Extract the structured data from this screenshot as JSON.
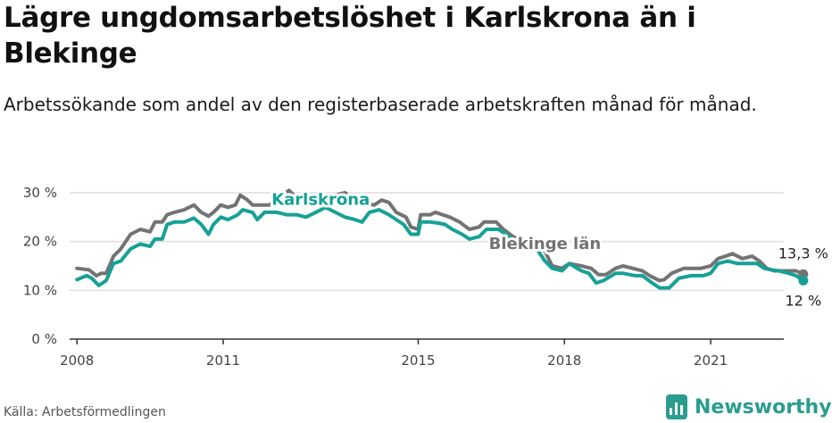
{
  "title": "Lägre ungdomsarbetslöshet i Karlskrona än i Blekinge",
  "subtitle": "Arbetssökande som andel av den registerbaserade arbetskraften månad för månad.",
  "source": "Källa: Arbetsförmedlingen",
  "brand": "Newsworthy",
  "colors": {
    "karlskrona": "#16a196",
    "blekinge": "#737373",
    "grid": "#dddddd",
    "brand": "#2a9d8f"
  },
  "chart_data": {
    "type": "line",
    "title": "Lägre ungdomsarbetslöshet i Karlskrona än i Blekinge",
    "xlabel": "",
    "ylabel": "",
    "xlim": [
      2007.85,
      2022.5
    ],
    "ylim": [
      0,
      30
    ],
    "y_ticks": [
      0,
      10,
      20,
      30
    ],
    "y_tick_labels": [
      "0 %",
      "10 %",
      "20 %",
      "30 %"
    ],
    "x_ticks": [
      2008,
      2011,
      2015,
      2018,
      2021
    ],
    "x_tick_labels": [
      "2008",
      "2011",
      "2015",
      "2018",
      "2021"
    ],
    "grid": true,
    "series": [
      {
        "name": "Blekinge län",
        "color": "#737373",
        "end_label": "13,3 %",
        "points": [
          [
            2008.0,
            14.5
          ],
          [
            2008.25,
            14.2
          ],
          [
            2008.4,
            13.0
          ],
          [
            2008.5,
            13.5
          ],
          [
            2008.6,
            13.5
          ],
          [
            2008.75,
            17.0
          ],
          [
            2008.9,
            18.5
          ],
          [
            2009.1,
            21.5
          ],
          [
            2009.3,
            22.5
          ],
          [
            2009.5,
            22.0
          ],
          [
            2009.6,
            24.0
          ],
          [
            2009.75,
            24.0
          ],
          [
            2009.85,
            25.5
          ],
          [
            2010.0,
            26.0
          ],
          [
            2010.2,
            26.5
          ],
          [
            2010.4,
            27.5
          ],
          [
            2010.55,
            26.0
          ],
          [
            2010.7,
            25.2
          ],
          [
            2010.8,
            26.0
          ],
          [
            2010.95,
            27.5
          ],
          [
            2011.1,
            27.0
          ],
          [
            2011.25,
            27.5
          ],
          [
            2011.35,
            29.5
          ],
          [
            2011.5,
            28.5
          ],
          [
            2011.6,
            27.5
          ],
          [
            2011.8,
            27.5
          ],
          [
            2011.95,
            27.5
          ],
          [
            2012.15,
            29.0
          ],
          [
            2012.35,
            30.5
          ],
          [
            2012.5,
            29.0
          ],
          [
            2012.7,
            28.5
          ],
          [
            2012.9,
            29.5
          ],
          [
            2013.1,
            29.2
          ],
          [
            2013.3,
            29.5
          ],
          [
            2013.5,
            30.0
          ],
          [
            2013.7,
            28.5
          ],
          [
            2013.9,
            27.8
          ],
          [
            2014.1,
            27.5
          ],
          [
            2014.25,
            28.5
          ],
          [
            2014.4,
            28.0
          ],
          [
            2014.55,
            26.0
          ],
          [
            2014.75,
            25.0
          ],
          [
            2014.85,
            23.0
          ],
          [
            2015.0,
            22.5
          ],
          [
            2015.05,
            25.5
          ],
          [
            2015.25,
            25.5
          ],
          [
            2015.35,
            26.0
          ],
          [
            2015.5,
            25.5
          ],
          [
            2015.65,
            25.0
          ],
          [
            2015.85,
            24.0
          ],
          [
            2016.05,
            22.5
          ],
          [
            2016.25,
            23.0
          ],
          [
            2016.35,
            24.0
          ],
          [
            2016.6,
            24.0
          ],
          [
            2016.75,
            22.5
          ],
          [
            2016.95,
            21.0
          ],
          [
            2017.15,
            20.0
          ],
          [
            2017.4,
            20.0
          ],
          [
            2017.6,
            18.0
          ],
          [
            2017.75,
            15.0
          ],
          [
            2017.95,
            14.5
          ],
          [
            2018.1,
            15.5
          ],
          [
            2018.35,
            15.0
          ],
          [
            2018.55,
            14.5
          ],
          [
            2018.7,
            13.2
          ],
          [
            2018.85,
            13.2
          ],
          [
            2019.05,
            14.5
          ],
          [
            2019.2,
            15.0
          ],
          [
            2019.4,
            14.5
          ],
          [
            2019.6,
            14.0
          ],
          [
            2019.75,
            13.0
          ],
          [
            2019.95,
            12.0
          ],
          [
            2020.05,
            12.2
          ],
          [
            2020.2,
            13.5
          ],
          [
            2020.45,
            14.5
          ],
          [
            2020.6,
            14.5
          ],
          [
            2020.8,
            14.5
          ],
          [
            2021.0,
            15.0
          ],
          [
            2021.15,
            16.5
          ],
          [
            2021.3,
            17.0
          ],
          [
            2021.45,
            17.5
          ],
          [
            2021.65,
            16.5
          ],
          [
            2021.85,
            17.0
          ],
          [
            2022.0,
            16.0
          ],
          [
            2022.15,
            14.5
          ],
          [
            2022.3,
            14.0
          ],
          [
            2022.55,
            14.0
          ],
          [
            2022.75,
            14.0
          ],
          [
            2022.9,
            13.3
          ]
        ]
      },
      {
        "name": "Karlskrona",
        "color": "#16a196",
        "end_label": "12 %",
        "points": [
          [
            2008.0,
            12.2
          ],
          [
            2008.2,
            13.0
          ],
          [
            2008.3,
            12.5
          ],
          [
            2008.45,
            11.0
          ],
          [
            2008.6,
            12.0
          ],
          [
            2008.75,
            15.5
          ],
          [
            2008.9,
            16.0
          ],
          [
            2009.1,
            18.5
          ],
          [
            2009.3,
            19.5
          ],
          [
            2009.5,
            19.0
          ],
          [
            2009.6,
            20.5
          ],
          [
            2009.75,
            20.5
          ],
          [
            2009.85,
            23.5
          ],
          [
            2010.0,
            24.0
          ],
          [
            2010.2,
            24.0
          ],
          [
            2010.4,
            24.8
          ],
          [
            2010.55,
            23.5
          ],
          [
            2010.7,
            21.5
          ],
          [
            2010.8,
            23.5
          ],
          [
            2010.95,
            25.0
          ],
          [
            2011.1,
            24.5
          ],
          [
            2011.3,
            25.5
          ],
          [
            2011.4,
            26.5
          ],
          [
            2011.6,
            26.0
          ],
          [
            2011.7,
            24.5
          ],
          [
            2011.85,
            26.0
          ],
          [
            2012.1,
            26.0
          ],
          [
            2012.3,
            25.5
          ],
          [
            2012.5,
            25.5
          ],
          [
            2012.7,
            25.0
          ],
          [
            2012.9,
            26.0
          ],
          [
            2013.1,
            27.0
          ],
          [
            2013.3,
            26.0
          ],
          [
            2013.5,
            25.0
          ],
          [
            2013.7,
            24.5
          ],
          [
            2013.85,
            24.0
          ],
          [
            2014.0,
            26.0
          ],
          [
            2014.2,
            26.5
          ],
          [
            2014.4,
            25.5
          ],
          [
            2014.55,
            24.5
          ],
          [
            2014.7,
            23.5
          ],
          [
            2014.85,
            21.5
          ],
          [
            2015.0,
            21.5
          ],
          [
            2015.05,
            24.0
          ],
          [
            2015.25,
            24.0
          ],
          [
            2015.4,
            23.8
          ],
          [
            2015.55,
            23.5
          ],
          [
            2015.7,
            22.5
          ],
          [
            2015.9,
            21.5
          ],
          [
            2016.05,
            20.5
          ],
          [
            2016.25,
            21.0
          ],
          [
            2016.4,
            22.5
          ],
          [
            2016.65,
            22.5
          ],
          [
            2016.8,
            21.5
          ],
          [
            2017.0,
            20.0
          ],
          [
            2017.15,
            19.5
          ],
          [
            2017.4,
            19.0
          ],
          [
            2017.6,
            16.0
          ],
          [
            2017.75,
            14.5
          ],
          [
            2017.95,
            14.0
          ],
          [
            2018.1,
            15.5
          ],
          [
            2018.35,
            14.0
          ],
          [
            2018.5,
            13.5
          ],
          [
            2018.65,
            11.5
          ],
          [
            2018.8,
            12.0
          ],
          [
            2019.05,
            13.5
          ],
          [
            2019.2,
            13.5
          ],
          [
            2019.45,
            13.0
          ],
          [
            2019.6,
            13.0
          ],
          [
            2019.8,
            11.5
          ],
          [
            2019.95,
            10.5
          ],
          [
            2020.15,
            10.5
          ],
          [
            2020.35,
            12.5
          ],
          [
            2020.6,
            13.0
          ],
          [
            2020.85,
            13.0
          ],
          [
            2021.0,
            13.5
          ],
          [
            2021.15,
            15.5
          ],
          [
            2021.35,
            16.0
          ],
          [
            2021.55,
            15.5
          ],
          [
            2021.8,
            15.5
          ],
          [
            2021.95,
            15.5
          ],
          [
            2022.1,
            14.5
          ],
          [
            2022.25,
            14.2
          ],
          [
            2022.4,
            14.0
          ],
          [
            2022.6,
            13.5
          ],
          [
            2022.75,
            13.0
          ],
          [
            2022.9,
            12.0
          ]
        ]
      }
    ],
    "annotations": [
      {
        "series": "Karlskrona",
        "text": "Karlskrona",
        "x": 2013.0,
        "y": 27.5
      },
      {
        "series": "Blekinge län",
        "text": "Blekinge län",
        "x": 2017.6,
        "y": 18.5
      }
    ]
  }
}
